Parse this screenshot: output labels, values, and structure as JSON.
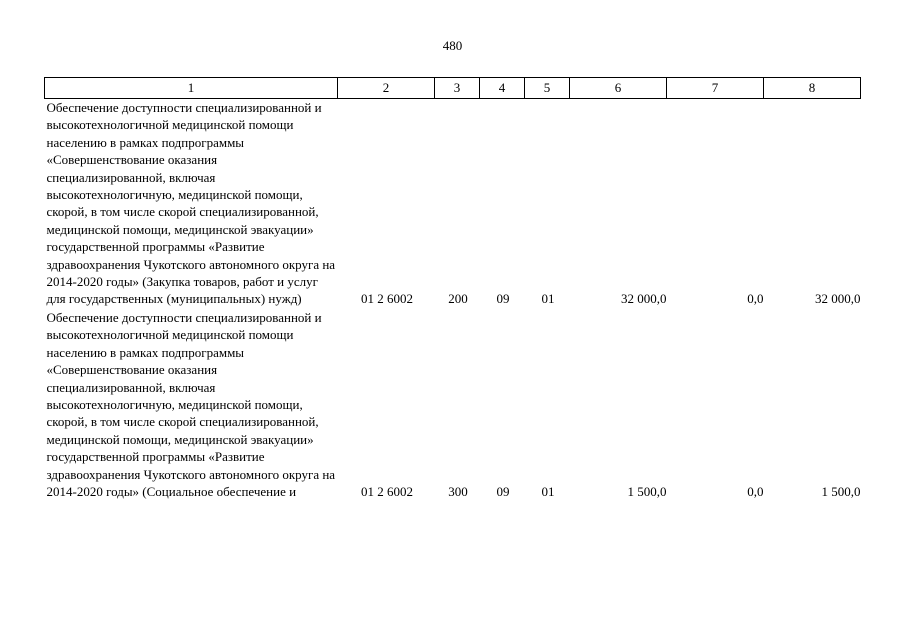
{
  "page_number": "480",
  "table": {
    "headers": [
      "1",
      "2",
      "3",
      "4",
      "5",
      "6",
      "7",
      "8"
    ],
    "rows": [
      {
        "description": "Обеспечение доступности специализированной и высокотехнологичной медицинской помощи населению в рамках подпрограммы «Совершенствование оказания специализированной, включая высокотехнологичную, медицинской помощи, скорой, в том числе скорой специализированной, медицинской помощи, медицинской эвакуации»  государственной программы «Развитие здравоохранения Чукотского автономного округа на 2014-2020 годы» (Закупка товаров, работ и услуг для государственных (муниципальных) нужд)",
        "code": "01 2 6002",
        "col3": "200",
        "col4": "09",
        "col5": "01",
        "col6": "32 000,0",
        "col7": "0,0",
        "col8": "32 000,0"
      },
      {
        "description": "Обеспечение доступности специализированной и высокотехнологичной медицинской помощи населению в рамках подпрограммы «Совершенствование оказания специализированной, включая высокотехнологичную, медицинской помощи, скорой, в том числе скорой специализированной, медицинской помощи, медицинской эвакуации»  государственной программы «Развитие здравоохранения Чукотского автономного округа на 2014-2020 годы» (Социальное обеспечение и",
        "code": "01 2 6002",
        "col3": "300",
        "col4": "09",
        "col5": "01",
        "col6": "1 500,0",
        "col7": "0,0",
        "col8": "1 500,0"
      }
    ]
  }
}
